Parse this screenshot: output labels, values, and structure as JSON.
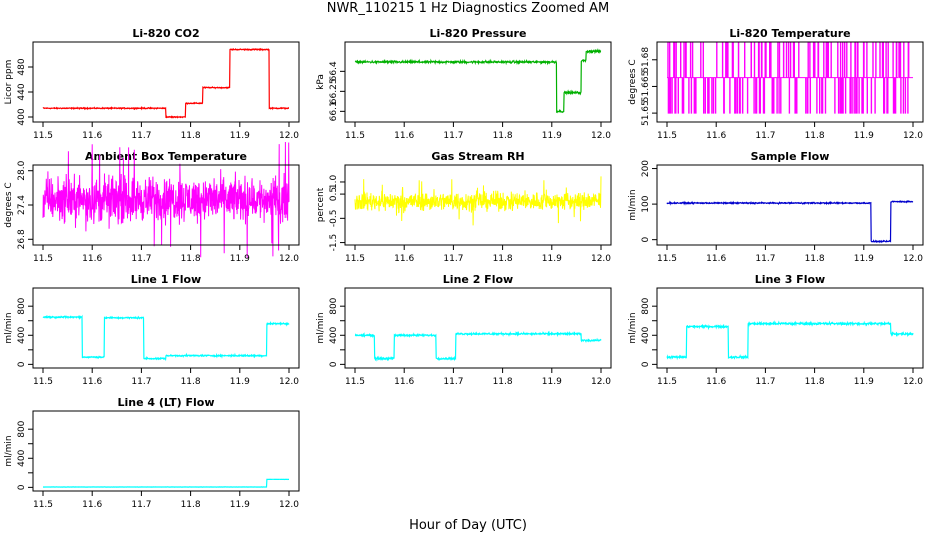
{
  "figure": {
    "title": "NWR_110215  1 Hz Diagnostics Zoomed AM",
    "xlabel": "Hour of Day (UTC)"
  },
  "chart_data": [
    {
      "id": "p1",
      "type": "line",
      "title": "Li-820 CO2",
      "ylabel": "Licor ppm",
      "color": "#ff0000",
      "xlim": [
        11.5,
        12.0
      ],
      "ylim": [
        392,
        520
      ],
      "xticks": [
        11.5,
        11.6,
        11.7,
        11.8,
        11.9,
        12.0
      ],
      "yticks": [
        400,
        440,
        480
      ],
      "ytick_labels": [
        "400",
        "440",
        "480"
      ],
      "noise": 1.2,
      "segments": [
        [
          11.5,
          11.75,
          414
        ],
        [
          11.75,
          11.79,
          400
        ],
        [
          11.79,
          11.825,
          422
        ],
        [
          11.825,
          11.88,
          447
        ],
        [
          11.88,
          11.96,
          508
        ],
        [
          11.96,
          12.0,
          414
        ]
      ]
    },
    {
      "id": "p2",
      "type": "line",
      "title": "Li-820 Pressure",
      "ylabel": "kPa",
      "color": "#00b000",
      "xlim": [
        11.5,
        12.0
      ],
      "ylim": [
        66.02,
        66.62
      ],
      "xticks": [
        11.5,
        11.6,
        11.7,
        11.8,
        11.9,
        12.0
      ],
      "yticks": [
        66.1,
        66.25,
        66.4
      ],
      "ytick_labels": [
        "66.1",
        "66.25",
        "66.4"
      ],
      "noise": 0.012,
      "segments": [
        [
          11.5,
          11.91,
          66.47
        ],
        [
          11.91,
          11.925,
          66.1
        ],
        [
          11.925,
          11.96,
          66.24
        ],
        [
          11.96,
          11.97,
          66.48
        ],
        [
          11.97,
          12.0,
          66.55
        ]
      ]
    },
    {
      "id": "p3",
      "type": "spike",
      "title": "Li-820 Temperature",
      "ylabel": "degrees C",
      "color": "#ff00ff",
      "xlim": [
        11.5,
        12.0
      ],
      "ylim": [
        51.645,
        51.69
      ],
      "xticks": [
        11.5,
        11.6,
        11.7,
        11.8,
        11.9,
        12.0
      ],
      "yticks": [
        51.65,
        51.665,
        51.68
      ],
      "ytick_labels": [
        "51.65",
        "51.665",
        "51.68"
      ],
      "base": 51.67,
      "low": 51.65,
      "high": 51.69
    },
    {
      "id": "p4",
      "type": "noise",
      "title": "Ambient Box Temperature",
      "ylabel": "degrees C",
      "color": "#ff00ff",
      "xlim": [
        11.5,
        12.0
      ],
      "ylim": [
        26.7,
        28.1
      ],
      "xticks": [
        11.5,
        11.6,
        11.7,
        11.8,
        11.9,
        12.0
      ],
      "yticks": [
        26.8,
        27.4,
        28.0
      ],
      "ytick_labels": [
        "26.8",
        "27.4",
        "28.0"
      ],
      "center": 27.5,
      "amp": 0.35
    },
    {
      "id": "p5",
      "type": "noise",
      "title": "Gas Stream RH",
      "ylabel": "percent",
      "color": "#ffff00",
      "xlim": [
        11.5,
        12.0
      ],
      "ylim": [
        -1.6,
        1.7
      ],
      "xticks": [
        11.5,
        11.6,
        11.7,
        11.8,
        11.9,
        12.0
      ],
      "yticks": [
        -1.5,
        -0.5,
        0.5,
        1.0
      ],
      "ytick_labels": [
        "-1.5",
        "-0.5",
        "0.5",
        "1.0"
      ],
      "center": 0.2,
      "amp": 0.35
    },
    {
      "id": "p6",
      "type": "line",
      "title": "Sample Flow",
      "ylabel": "ml/min",
      "color": "#0000cc",
      "xlim": [
        11.5,
        12.0
      ],
      "ylim": [
        -15,
        210
      ],
      "xticks": [
        11.5,
        11.6,
        11.7,
        11.8,
        11.9,
        12.0
      ],
      "yticks": [
        0,
        100,
        200
      ],
      "ytick_labels": [
        "0",
        "100",
        "200"
      ],
      "noise": 2.5,
      "segments": [
        [
          11.5,
          11.915,
          103
        ],
        [
          11.915,
          11.955,
          -5
        ],
        [
          11.955,
          12.0,
          107
        ]
      ]
    },
    {
      "id": "p7",
      "type": "line",
      "title": "Line 1 Flow",
      "ylabel": "ml/min",
      "color": "#00ffff",
      "xlim": [
        11.5,
        12.0
      ],
      "ylim": [
        -50,
        1050
      ],
      "xticks": [
        11.5,
        11.6,
        11.7,
        11.8,
        11.9,
        12.0
      ],
      "yticks": [
        0,
        200,
        400,
        600,
        800
      ],
      "ytick_labels": [
        "0",
        "400",
        "800"
      ],
      "ytick_labeled": [
        0,
        400,
        800
      ],
      "noise": 15,
      "segments": [
        [
          11.5,
          11.58,
          650
        ],
        [
          11.58,
          11.625,
          100
        ],
        [
          11.625,
          11.705,
          640
        ],
        [
          11.705,
          11.75,
          80
        ],
        [
          11.75,
          11.955,
          120
        ],
        [
          11.955,
          12.0,
          560
        ]
      ]
    },
    {
      "id": "p8",
      "type": "line",
      "title": "Line 2 Flow",
      "ylabel": "ml/min",
      "color": "#00ffff",
      "xlim": [
        11.5,
        12.0
      ],
      "ylim": [
        -50,
        1050
      ],
      "xticks": [
        11.5,
        11.6,
        11.7,
        11.8,
        11.9,
        12.0
      ],
      "yticks": [
        0,
        200,
        400,
        600,
        800
      ],
      "ytick_labels": [
        "0",
        "400",
        "800"
      ],
      "ytick_labeled": [
        0,
        400,
        800
      ],
      "noise": 18,
      "segments": [
        [
          11.5,
          11.54,
          400
        ],
        [
          11.54,
          11.58,
          80
        ],
        [
          11.58,
          11.665,
          400
        ],
        [
          11.665,
          11.705,
          80
        ],
        [
          11.705,
          11.96,
          420
        ],
        [
          11.96,
          12.0,
          330
        ]
      ]
    },
    {
      "id": "p9",
      "type": "line",
      "title": "Line 3 Flow",
      "ylabel": "ml/min",
      "color": "#00ffff",
      "xlim": [
        11.5,
        12.0
      ],
      "ylim": [
        -50,
        1050
      ],
      "xticks": [
        11.5,
        11.6,
        11.7,
        11.8,
        11.9,
        12.0
      ],
      "yticks": [
        0,
        200,
        400,
        600,
        800
      ],
      "ytick_labels": [
        "0",
        "400",
        "800"
      ],
      "ytick_labeled": [
        0,
        400,
        800
      ],
      "noise": 22,
      "segments": [
        [
          11.5,
          11.54,
          100
        ],
        [
          11.54,
          11.625,
          520
        ],
        [
          11.625,
          11.665,
          100
        ],
        [
          11.665,
          11.955,
          560
        ],
        [
          11.955,
          12.0,
          420
        ]
      ]
    },
    {
      "id": "p10",
      "type": "line",
      "title": "Line 4 (LT) Flow",
      "ylabel": "ml/min",
      "color": "#00ffff",
      "xlim": [
        11.5,
        12.0
      ],
      "ylim": [
        -50,
        1050
      ],
      "xticks": [
        11.5,
        11.6,
        11.7,
        11.8,
        11.9,
        12.0
      ],
      "yticks": [
        0,
        200,
        400,
        600,
        800
      ],
      "ytick_labels": [
        "0",
        "400",
        "800"
      ],
      "ytick_labeled": [
        0,
        400,
        800
      ],
      "noise": 2,
      "segments": [
        [
          11.5,
          11.955,
          5
        ],
        [
          11.955,
          12.0,
          110
        ]
      ]
    }
  ]
}
